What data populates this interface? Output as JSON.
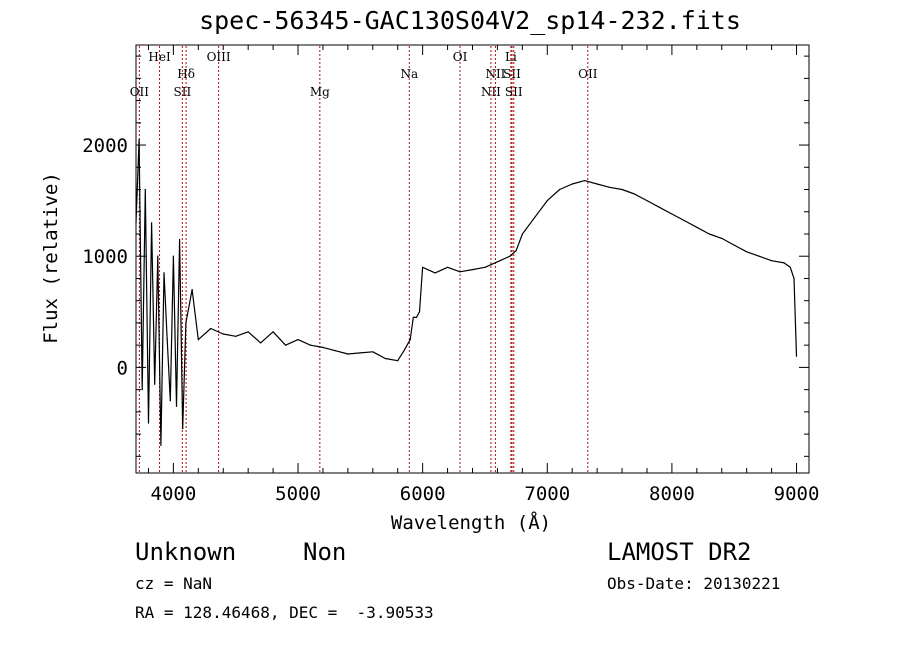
{
  "chart_data": {
    "type": "line",
    "title": "spec-56345-GAC130S04V2_sp14-232.fits",
    "xlabel": "Wavelength (Å)",
    "ylabel": "Flux (relative)",
    "xlim": [
      3700,
      9100
    ],
    "ylim": [
      -950,
      2900
    ],
    "x_ticks": [
      4000,
      5000,
      6000,
      7000,
      8000,
      9000
    ],
    "y_ticks": [
      0,
      1000,
      2000
    ],
    "grid": false,
    "series": [
      {
        "color": "#000000",
        "x": [
          3700,
          3725,
          3750,
          3775,
          3800,
          3825,
          3850,
          3875,
          3900,
          3925,
          3950,
          3975,
          4000,
          4025,
          4050,
          4075,
          4100,
          4150,
          4200,
          4300,
          4400,
          4500,
          4600,
          4700,
          4800,
          4900,
          5000,
          5100,
          5200,
          5300,
          5400,
          5500,
          5600,
          5700,
          5800,
          5850,
          5900,
          5925,
          5950,
          5975,
          6000,
          6100,
          6200,
          6300,
          6400,
          6500,
          6600,
          6700,
          6750,
          6800,
          6900,
          7000,
          7100,
          7200,
          7300,
          7400,
          7500,
          7600,
          7700,
          7800,
          7900,
          8000,
          8100,
          8200,
          8300,
          8400,
          8500,
          8600,
          8700,
          8800,
          8900,
          8950,
          8980,
          9000
        ],
        "y": [
          1300,
          2050,
          -200,
          1600,
          -500,
          1300,
          -150,
          1000,
          -700,
          850,
          250,
          -300,
          1000,
          -350,
          1150,
          -550,
          400,
          700,
          250,
          350,
          300,
          280,
          320,
          220,
          320,
          200,
          250,
          200,
          180,
          150,
          120,
          130,
          140,
          80,
          60,
          150,
          250,
          450,
          450,
          500,
          900,
          850,
          900,
          860,
          880,
          900,
          950,
          1000,
          1050,
          1200,
          1350,
          1500,
          1600,
          1650,
          1680,
          1650,
          1620,
          1600,
          1560,
          1500,
          1440,
          1380,
          1320,
          1260,
          1200,
          1160,
          1100,
          1040,
          1000,
          960,
          940,
          900,
          800,
          100
        ]
      }
    ],
    "annotations": [
      {
        "label": "OII",
        "x": 3727,
        "row": 3
      },
      {
        "label": "HeI",
        "x": 3889,
        "row": 1
      },
      {
        "label": "Hδ",
        "x": 4102,
        "row": 2
      },
      {
        "label": "SII",
        "x": 4072,
        "row": 3
      },
      {
        "label": "OIII",
        "x": 4363,
        "row": 1
      },
      {
        "label": "Mg",
        "x": 5175,
        "row": 3
      },
      {
        "label": "Na",
        "x": 5893,
        "row": 2
      },
      {
        "label": "OI",
        "x": 6300,
        "row": 1
      },
      {
        "label": "NII",
        "x": 6548,
        "row": 3
      },
      {
        "label": "NII",
        "x": 6584,
        "row": 2
      },
      {
        "label": "Li",
        "x": 6708,
        "row": 1
      },
      {
        "label": "SII",
        "x": 6717,
        "row": 2
      },
      {
        "label": "SII",
        "x": 6731,
        "row": 3
      },
      {
        "label": "OII",
        "x": 7325,
        "row": 2
      }
    ]
  },
  "meta": {
    "class": "Unknown",
    "subclass": "Non",
    "survey": "LAMOST DR2",
    "cz": "cz = NaN",
    "obs_date": "Obs-Date: 20130221",
    "radec": "RA = 128.46468, DEC =  -3.90533"
  }
}
